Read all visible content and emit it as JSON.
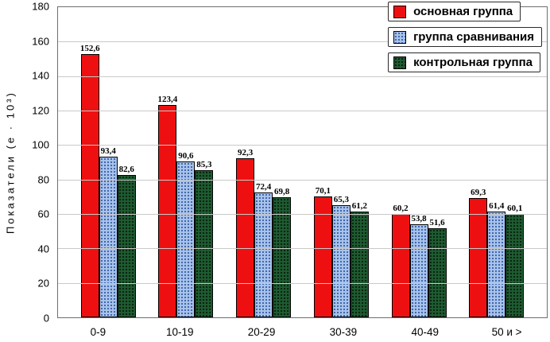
{
  "chart_data": {
    "type": "bar",
    "title": "",
    "xlabel": "",
    "ylabel": "Показатели (е · 10³)",
    "ylim": [
      0,
      180
    ],
    "yticks": [
      0,
      20,
      40,
      60,
      80,
      100,
      120,
      140,
      160,
      180
    ],
    "grid": true,
    "legend_position": "top-right",
    "categories": [
      "0-9",
      "10-19",
      "20-29",
      "30-39",
      "40-49",
      "50 и >"
    ],
    "series": [
      {
        "name": "основная группа",
        "color": "#ee1010",
        "values": [
          152.6,
          123.4,
          92.3,
          70.1,
          60.2,
          69.3
        ],
        "labels": [
          "152,6",
          "123,4",
          "92,3",
          "70,1",
          "60,2",
          "69,3"
        ]
      },
      {
        "name": "группа сравнивания",
        "color": "#a9c3ea",
        "values": [
          93.4,
          90.6,
          72.4,
          65.3,
          53.8,
          61.4
        ],
        "labels": [
          "93,4",
          "90,6",
          "72,4",
          "65,3",
          "53,8",
          "61,4"
        ]
      },
      {
        "name": "контрольная группа",
        "color": "#1e5b31",
        "values": [
          82.6,
          85.3,
          69.8,
          61.2,
          51.6,
          60.1
        ],
        "labels": [
          "82,6",
          "85,3",
          "69,8",
          "61,2",
          "51,6",
          "60,1"
        ]
      }
    ]
  }
}
